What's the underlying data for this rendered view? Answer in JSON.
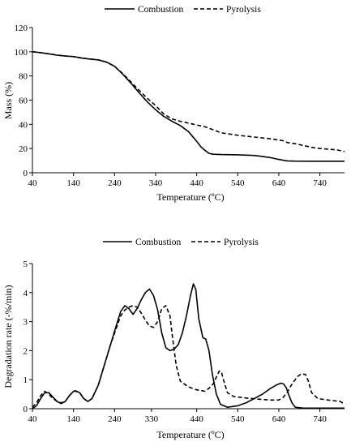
{
  "chart_data": [
    {
      "type": "line",
      "xlabel": "Temperature (ºC)",
      "ylabel": "Mass (%)",
      "xlim": [
        40,
        800
      ],
      "ylim": [
        0,
        120
      ],
      "xticks": [
        40,
        140,
        240,
        340,
        440,
        540,
        640,
        740
      ],
      "yticks": [
        0,
        20,
        40,
        60,
        80,
        100,
        120
      ],
      "grid": false,
      "legend": "top-center",
      "series": [
        {
          "name": "Combustion",
          "style": "solid",
          "x": [
            40,
            60,
            80,
            100,
            120,
            140,
            160,
            180,
            200,
            220,
            240,
            260,
            280,
            300,
            320,
            340,
            360,
            380,
            400,
            420,
            440,
            450,
            460,
            470,
            480,
            500,
            540,
            580,
            600,
            620,
            640,
            660,
            680,
            720,
            760,
            800
          ],
          "y": [
            100,
            99.3,
            98.3,
            97.2,
            96.5,
            96,
            94.8,
            94,
            93.3,
            91.5,
            88,
            81.5,
            74,
            66,
            58.5,
            52,
            46.5,
            42.5,
            39,
            34,
            26,
            21.5,
            18.5,
            16,
            15.3,
            15,
            14.8,
            14.3,
            13.5,
            12.5,
            11,
            9.8,
            9.6,
            9.5,
            9.5,
            9.5
          ]
        },
        {
          "name": "Pyrolysis",
          "style": "dashed",
          "x": [
            40,
            60,
            80,
            100,
            120,
            140,
            160,
            180,
            200,
            220,
            240,
            260,
            280,
            300,
            320,
            340,
            360,
            380,
            400,
            420,
            440,
            460,
            480,
            500,
            540,
            580,
            620,
            650,
            660,
            680,
            700,
            720,
            740,
            760,
            780,
            800
          ],
          "y": [
            100,
            99.3,
            98.3,
            97.2,
            96.5,
            96,
            94.8,
            94,
            93.3,
            91.5,
            88,
            82,
            75,
            68,
            61.5,
            55.5,
            48.5,
            44.5,
            42.5,
            41,
            39.5,
            38,
            35.5,
            33,
            31,
            29.5,
            28,
            26.5,
            25,
            24,
            22.5,
            21,
            20,
            19.5,
            19,
            17.5
          ]
        }
      ]
    },
    {
      "type": "line",
      "xlabel": "Temperature (ºC)",
      "ylabel": "Degradation rate (-%/min)",
      "xlim": [
        40,
        800
      ],
      "ylim": [
        0,
        5
      ],
      "xticks": [
        40,
        140,
        240,
        330,
        440,
        540,
        640,
        740
      ],
      "yticks": [
        0,
        1,
        2,
        3,
        4,
        5
      ],
      "grid": false,
      "legend": "top-center",
      "series": [
        {
          "name": "Combustion",
          "style": "solid",
          "x": [
            40,
            50,
            60,
            70,
            80,
            90,
            100,
            110,
            120,
            130,
            140,
            145,
            155,
            165,
            175,
            185,
            200,
            215,
            230,
            245,
            255,
            265,
            275,
            285,
            295,
            305,
            315,
            325,
            335,
            345,
            355,
            365,
            375,
            385,
            395,
            405,
            415,
            425,
            432,
            438,
            445,
            455,
            462,
            470,
            478,
            488,
            498,
            515,
            540,
            560,
            580,
            600,
            620,
            635,
            645,
            652,
            658,
            665,
            672,
            680,
            700,
            740,
            800
          ],
          "y": [
            0,
            0.1,
            0.35,
            0.55,
            0.55,
            0.4,
            0.25,
            0.18,
            0.25,
            0.45,
            0.6,
            0.62,
            0.55,
            0.35,
            0.25,
            0.35,
            0.8,
            1.5,
            2.2,
            2.9,
            3.35,
            3.55,
            3.45,
            3.25,
            3.45,
            3.75,
            4.0,
            4.12,
            3.9,
            3.4,
            2.6,
            2.1,
            2.0,
            2.05,
            2.2,
            2.6,
            3.2,
            3.9,
            4.3,
            4.1,
            3.1,
            2.45,
            2.4,
            2.0,
            1.2,
            0.5,
            0.15,
            0.05,
            0.1,
            0.2,
            0.35,
            0.5,
            0.7,
            0.82,
            0.88,
            0.85,
            0.72,
            0.45,
            0.2,
            0.05,
            0.02,
            0.02,
            0.02
          ]
        },
        {
          "name": "Pyrolysis",
          "style": "dashed",
          "x": [
            40,
            50,
            60,
            70,
            80,
            90,
            100,
            110,
            120,
            130,
            140,
            145,
            155,
            165,
            175,
            185,
            200,
            215,
            230,
            245,
            255,
            265,
            275,
            285,
            295,
            305,
            315,
            325,
            335,
            345,
            355,
            365,
            375,
            380,
            390,
            400,
            420,
            440,
            460,
            470,
            480,
            490,
            495,
            500,
            505,
            515,
            530,
            560,
            590,
            620,
            640,
            650,
            660,
            670,
            685,
            695,
            705,
            712,
            720,
            735,
            760,
            790,
            800
          ],
          "y": [
            0.05,
            0.2,
            0.45,
            0.6,
            0.5,
            0.35,
            0.25,
            0.2,
            0.25,
            0.45,
            0.6,
            0.6,
            0.55,
            0.35,
            0.25,
            0.35,
            0.8,
            1.5,
            2.2,
            2.8,
            3.2,
            3.4,
            3.5,
            3.55,
            3.5,
            3.3,
            3.05,
            2.85,
            2.8,
            3.0,
            3.45,
            3.55,
            3.2,
            2.6,
            1.5,
            0.95,
            0.75,
            0.65,
            0.6,
            0.7,
            0.85,
            1.15,
            1.3,
            1.28,
            1.0,
            0.55,
            0.42,
            0.37,
            0.33,
            0.3,
            0.3,
            0.38,
            0.55,
            0.8,
            1.1,
            1.2,
            1.18,
            0.95,
            0.55,
            0.35,
            0.3,
            0.25,
            0.15
          ]
        }
      ]
    }
  ]
}
